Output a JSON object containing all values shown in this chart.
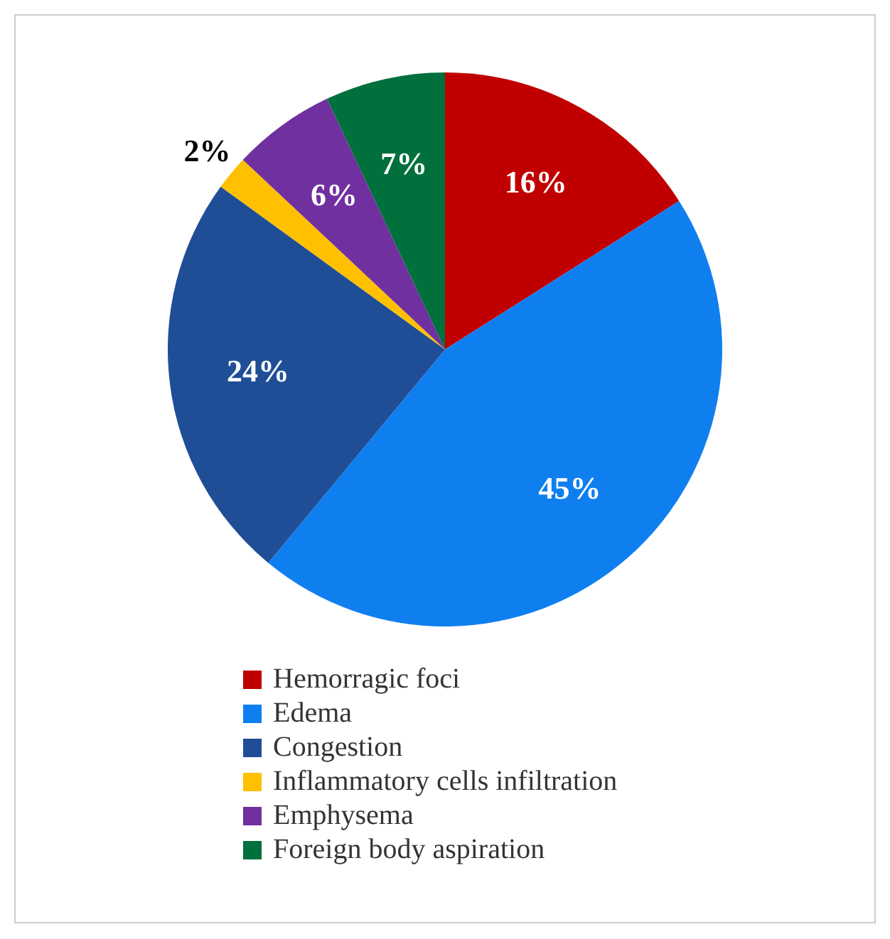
{
  "chart_data": {
    "type": "pie",
    "categories": [
      "Hemorragic foci",
      "Edema",
      "Congestion",
      "Inflammatory cells infiltration",
      "Emphysema",
      "Foreign body aspiration"
    ],
    "values": [
      16,
      45,
      24,
      2,
      6,
      7
    ],
    "colors": [
      "#c00000",
      "#0f7ff0",
      "#1f4e96",
      "#ffc000",
      "#7030a0",
      "#00703c"
    ],
    "value_labels": [
      "16%",
      "45%",
      "24%",
      "2%",
      "6%",
      "7%"
    ],
    "legend": "bottom"
  }
}
